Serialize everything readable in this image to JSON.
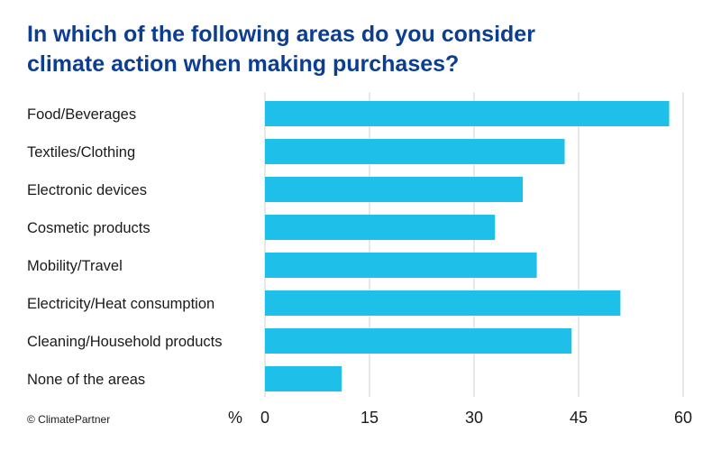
{
  "chart_data": {
    "type": "bar",
    "orientation": "horizontal",
    "title_lines": [
      "In which of the following areas do you consider",
      "climate action when making purchases?"
    ],
    "categories": [
      "Food/Beverages",
      "Textiles/Clothing",
      "Electronic devices",
      "Cosmetic products",
      "Mobility/Travel",
      "Electricity/Heat consumption",
      "Cleaning/Household products",
      "None of the areas"
    ],
    "values": [
      58,
      43,
      37,
      33,
      39,
      51,
      44,
      11
    ],
    "unit": "%",
    "xlim": [
      0,
      60
    ],
    "xticks": [
      0,
      15,
      30,
      45,
      60
    ],
    "grid": true,
    "bar_color": "#1ebfe8"
  },
  "footer": {
    "copyright": "© ClimatePartner"
  }
}
